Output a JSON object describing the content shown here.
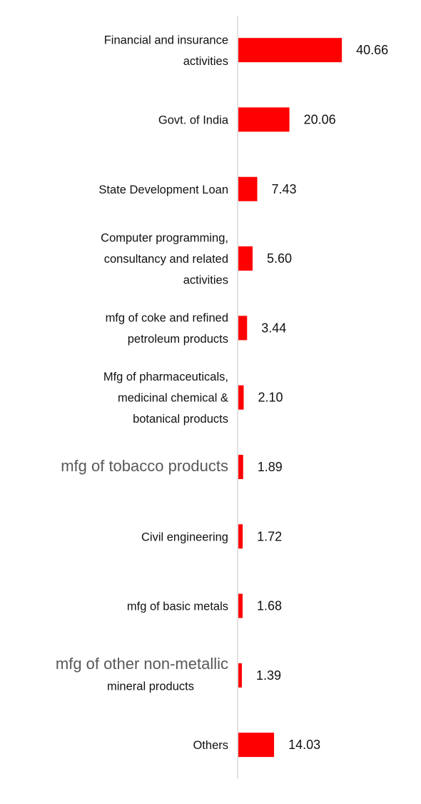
{
  "chart_data": {
    "type": "bar",
    "orientation": "horizontal",
    "bar_color": "#ff0000",
    "axis_color": "#d9d9d9",
    "categories": [
      "Financial and insurance activities",
      "Govt. of India",
      "State Development Loan",
      "Computer programming, consultancy and related activities",
      "mfg of coke and refined petroleum products",
      "Mfg of pharmaceuticals, medicinal chemical & botanical products",
      "mfg of tobacco products",
      "Civil engineering",
      "mfg of basic metals",
      "mfg of other non-metallic mineral products",
      "Others"
    ],
    "category_lines": [
      [
        "Financial and insurance",
        "activities"
      ],
      [
        "Govt. of India"
      ],
      [
        "State Development Loan"
      ],
      [
        "Computer programming,",
        "consultancy and related",
        "activities"
      ],
      [
        "mfg of coke and refined",
        "petroleum products"
      ],
      [
        "Mfg of pharmaceuticals,",
        "medicinal chemical &",
        "botanical products"
      ],
      [
        "mfg of tobacco products"
      ],
      [
        "Civil engineering"
      ],
      [
        "mfg of basic metals"
      ],
      [
        "mfg of other non-metallic",
        "mineral products"
      ],
      [
        "Others"
      ]
    ],
    "values": [
      40.66,
      20.06,
      7.43,
      5.6,
      3.44,
      2.1,
      1.89,
      1.72,
      1.68,
      1.39,
      14.03
    ],
    "value_labels": [
      "40.66",
      "20.06",
      "7.43",
      "5.60",
      "3.44",
      "2.10",
      "1.89",
      "1.72",
      "1.68",
      "1.39",
      "14.03"
    ],
    "title": "",
    "xlabel": "",
    "ylabel": "",
    "xlim": [
      0,
      45
    ],
    "grid": false,
    "legend": "none"
  }
}
